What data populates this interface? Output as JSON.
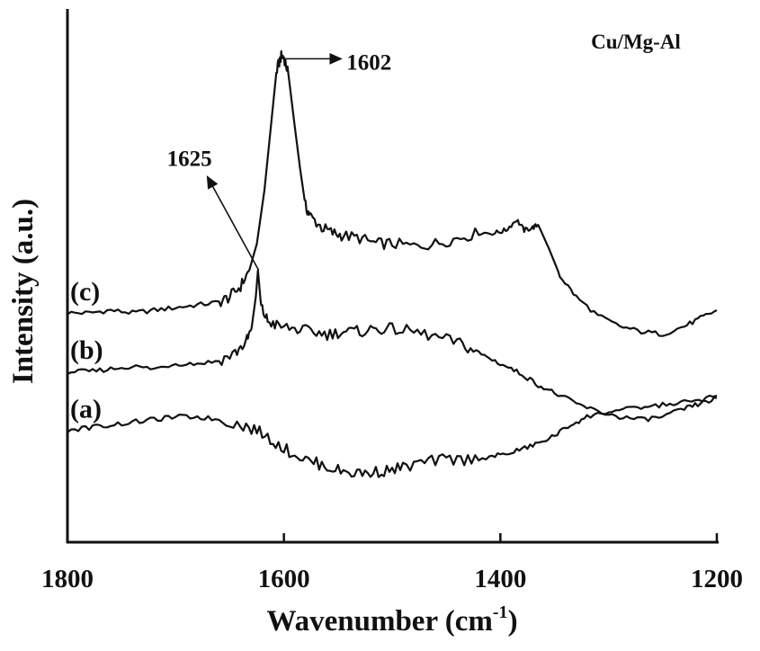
{
  "chart_data": {
    "type": "line",
    "title": "",
    "sample_label": "Cu/Mg-Al",
    "xlabel": "Wavenumber (cm",
    "xlabel_sup": "-1",
    "xlabel_close": ")",
    "ylabel": "Intensity (a.u.)",
    "xlim": [
      1800,
      1200
    ],
    "x_reversed": true,
    "y_ticks_shown": false,
    "ylim": [
      0,
      100
    ],
    "x_ticks": [
      "1800",
      "1600",
      "1400",
      "1200"
    ],
    "x_tick_values": [
      1800,
      1600,
      1400,
      1200
    ],
    "grid": false,
    "annotations": [
      {
        "text": "1602",
        "x": 1602
      },
      {
        "text": "1625",
        "x": 1625
      }
    ],
    "series": [
      {
        "name": "(c)",
        "points": [
          [
            1800,
            43
          ],
          [
            1780,
            43
          ],
          [
            1760,
            43.5
          ],
          [
            1740,
            43
          ],
          [
            1720,
            43.5
          ],
          [
            1700,
            44
          ],
          [
            1680,
            44.5
          ],
          [
            1660,
            45
          ],
          [
            1650,
            46
          ],
          [
            1640,
            48
          ],
          [
            1632,
            51
          ],
          [
            1625,
            56
          ],
          [
            1618,
            66
          ],
          [
            1612,
            78
          ],
          [
            1607,
            88
          ],
          [
            1603,
            91
          ],
          [
            1600,
            91
          ],
          [
            1596,
            88
          ],
          [
            1590,
            78
          ],
          [
            1585,
            70
          ],
          [
            1580,
            63
          ],
          [
            1575,
            61
          ],
          [
            1565,
            59
          ],
          [
            1555,
            58
          ],
          [
            1545,
            57.5
          ],
          [
            1530,
            57
          ],
          [
            1515,
            56
          ],
          [
            1500,
            56
          ],
          [
            1480,
            55.5
          ],
          [
            1460,
            56
          ],
          [
            1440,
            57
          ],
          [
            1420,
            58
          ],
          [
            1405,
            58
          ],
          [
            1395,
            58.5
          ],
          [
            1385,
            60.5
          ],
          [
            1378,
            58.5
          ],
          [
            1370,
            59
          ],
          [
            1365,
            59.5
          ],
          [
            1355,
            55
          ],
          [
            1345,
            50
          ],
          [
            1330,
            46
          ],
          [
            1310,
            42.5
          ],
          [
            1290,
            40.5
          ],
          [
            1270,
            39.5
          ],
          [
            1250,
            39
          ],
          [
            1230,
            40.5
          ],
          [
            1215,
            42
          ],
          [
            1200,
            43.5
          ]
        ]
      },
      {
        "name": "(b)",
        "points": [
          [
            1800,
            32
          ],
          [
            1780,
            32
          ],
          [
            1760,
            32.5
          ],
          [
            1740,
            33
          ],
          [
            1720,
            32.5
          ],
          [
            1700,
            33.5
          ],
          [
            1680,
            33.5
          ],
          [
            1660,
            34
          ],
          [
            1645,
            35.5
          ],
          [
            1635,
            37.5
          ],
          [
            1630,
            40
          ],
          [
            1626,
            46
          ],
          [
            1624,
            51
          ],
          [
            1621,
            44
          ],
          [
            1615,
            41.5
          ],
          [
            1605,
            40.5
          ],
          [
            1590,
            40
          ],
          [
            1575,
            39.5
          ],
          [
            1560,
            39
          ],
          [
            1545,
            39.5
          ],
          [
            1530,
            39.5
          ],
          [
            1515,
            40
          ],
          [
            1500,
            40
          ],
          [
            1480,
            39.5
          ],
          [
            1460,
            38.5
          ],
          [
            1440,
            37.5
          ],
          [
            1425,
            36
          ],
          [
            1410,
            34.5
          ],
          [
            1395,
            33
          ],
          [
            1380,
            31.5
          ],
          [
            1365,
            29.5
          ],
          [
            1350,
            28
          ],
          [
            1330,
            26
          ],
          [
            1310,
            24.5
          ],
          [
            1290,
            23.5
          ],
          [
            1270,
            23
          ],
          [
            1250,
            23.5
          ],
          [
            1230,
            25
          ],
          [
            1215,
            26
          ],
          [
            1200,
            27
          ]
        ]
      },
      {
        "name": "(a)",
        "points": [
          [
            1800,
            21
          ],
          [
            1780,
            21.5
          ],
          [
            1760,
            22
          ],
          [
            1740,
            22.5
          ],
          [
            1720,
            23
          ],
          [
            1700,
            23.5
          ],
          [
            1680,
            23.5
          ],
          [
            1660,
            23
          ],
          [
            1640,
            22
          ],
          [
            1625,
            21
          ],
          [
            1610,
            19
          ],
          [
            1595,
            17
          ],
          [
            1580,
            15.5
          ],
          [
            1565,
            14.5
          ],
          [
            1550,
            13.5
          ],
          [
            1535,
            13
          ],
          [
            1520,
            13
          ],
          [
            1505,
            13.5
          ],
          [
            1490,
            14
          ],
          [
            1470,
            15
          ],
          [
            1450,
            15.5
          ],
          [
            1430,
            15.5
          ],
          [
            1410,
            16
          ],
          [
            1395,
            16.5
          ],
          [
            1380,
            17.5
          ],
          [
            1365,
            18.5
          ],
          [
            1350,
            20
          ],
          [
            1335,
            22
          ],
          [
            1320,
            23.5
          ],
          [
            1300,
            24.5
          ],
          [
            1280,
            25
          ],
          [
            1260,
            25.5
          ],
          [
            1240,
            26
          ],
          [
            1220,
            26.5
          ],
          [
            1200,
            27.5
          ]
        ]
      }
    ]
  }
}
